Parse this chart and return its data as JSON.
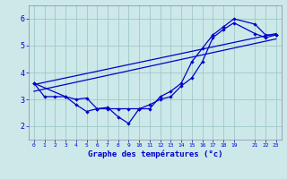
{
  "title": "Graphe des températures (°c)",
  "bg_color": "#cce8e8",
  "grid_color": "#a0c8c8",
  "line_color": "#0000cc",
  "xlim": [
    -0.5,
    23.5
  ],
  "ylim": [
    1.5,
    6.5
  ],
  "xticks": [
    0,
    1,
    2,
    3,
    4,
    5,
    6,
    7,
    8,
    9,
    10,
    11,
    12,
    13,
    14,
    15,
    16,
    17,
    18,
    19,
    21,
    22,
    23
  ],
  "yticks": [
    2,
    3,
    4,
    5,
    6
  ],
  "line1_x": [
    0,
    1,
    2,
    3,
    4,
    5,
    6,
    7,
    8,
    9,
    10,
    11,
    12,
    13,
    14,
    15,
    16,
    17,
    18,
    19,
    21,
    22,
    23
  ],
  "line1_y": [
    3.6,
    3.1,
    3.1,
    3.1,
    2.8,
    2.55,
    2.65,
    2.7,
    2.35,
    2.1,
    2.65,
    2.65,
    3.1,
    3.3,
    3.6,
    4.4,
    4.9,
    5.4,
    5.7,
    6.0,
    5.8,
    5.4,
    5.4
  ],
  "line2_x": [
    0,
    3,
    4,
    5,
    6,
    7,
    8,
    9,
    10,
    11,
    12,
    13,
    14,
    15,
    16,
    17,
    18,
    19,
    21,
    22,
    23
  ],
  "line2_y": [
    3.6,
    3.1,
    3.0,
    3.05,
    2.65,
    2.65,
    2.65,
    2.65,
    2.65,
    2.8,
    3.0,
    3.1,
    3.5,
    3.8,
    4.4,
    5.3,
    5.6,
    5.85,
    5.45,
    5.3,
    5.4
  ],
  "line3_x": [
    0,
    23
  ],
  "line3_y": [
    3.3,
    5.25
  ],
  "line4_x": [
    0,
    23
  ],
  "line4_y": [
    3.55,
    5.45
  ]
}
